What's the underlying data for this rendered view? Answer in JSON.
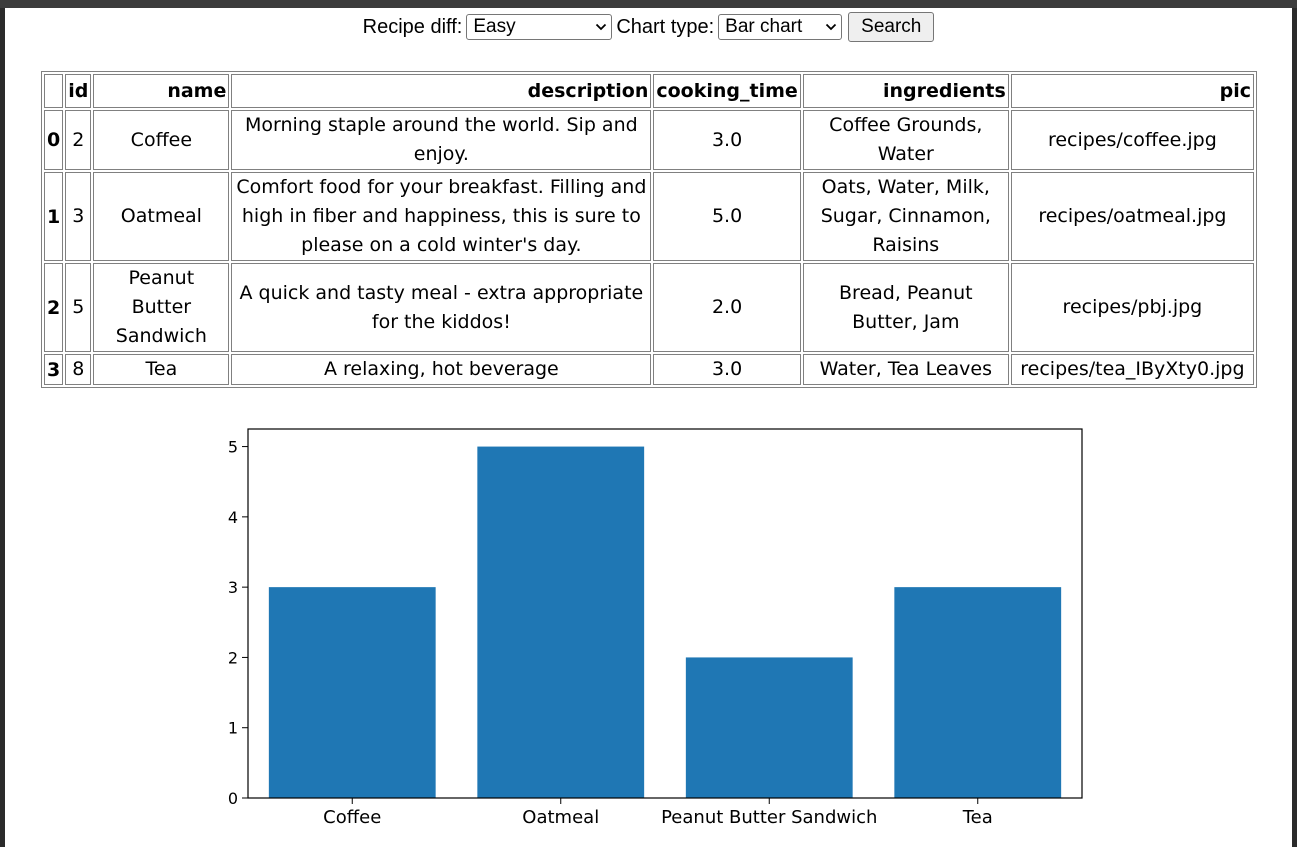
{
  "form": {
    "difficulty_label": "Recipe diff:",
    "difficulty_value": "Easy",
    "chart_type_label": "Chart type:",
    "chart_type_value": "Bar chart",
    "search_label": "Search"
  },
  "table": {
    "columns": [
      "",
      "id",
      "name",
      "description",
      "cooking_time",
      "ingredients",
      "pic"
    ],
    "rows": [
      {
        "index": "0",
        "id": "2",
        "name": "Coffee",
        "description": "Morning staple around the world. Sip and enjoy.",
        "cooking_time": "3.0",
        "ingredients": "Coffee Grounds, Water",
        "pic": "recipes/coffee.jpg"
      },
      {
        "index": "1",
        "id": "3",
        "name": "Oatmeal",
        "description": "Comfort food for your breakfast. Filling and high in fiber and happiness, this is sure to please on a cold winter's day.",
        "cooking_time": "5.0",
        "ingredients": "Oats, Water, Milk, Sugar, Cinnamon, Raisins",
        "pic": "recipes/oatmeal.jpg"
      },
      {
        "index": "2",
        "id": "5",
        "name": "Peanut Butter Sandwich",
        "description": "A quick and tasty meal - extra appropriate for the kiddos!",
        "cooking_time": "2.0",
        "ingredients": "Bread, Peanut Butter, Jam",
        "pic": "recipes/pbj.jpg"
      },
      {
        "index": "3",
        "id": "8",
        "name": "Tea",
        "description": "A relaxing, hot beverage",
        "cooking_time": "3.0",
        "ingredients": "Water, Tea Leaves",
        "pic": "recipes/tea_IByXty0.jpg"
      }
    ]
  },
  "chart_data": {
    "type": "bar",
    "categories": [
      "Coffee",
      "Oatmeal",
      "Peanut Butter Sandwich",
      "Tea"
    ],
    "values": [
      3,
      5,
      2,
      3
    ],
    "yticks": [
      "0",
      "1",
      "2",
      "3",
      "4",
      "5"
    ],
    "ylim": [
      0,
      5.25
    ],
    "bar_color": "#1f77b4",
    "title": "",
    "xlabel": "",
    "ylabel": "",
    "grid": false
  },
  "icons": {
    "dropdown": "chevron-down-icon"
  }
}
